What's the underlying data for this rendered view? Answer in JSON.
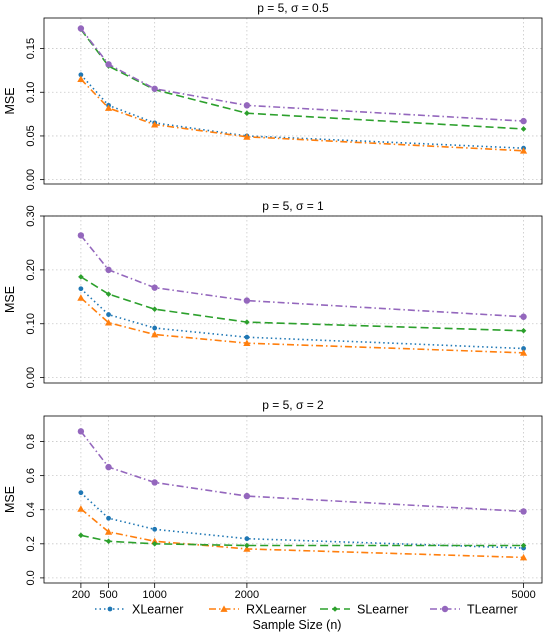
{
  "chart_data": {
    "type": "line",
    "xlabel": "Sample Size (n)",
    "x": [
      200,
      500,
      1000,
      2000,
      5000
    ],
    "xticks": [
      200,
      500,
      1000,
      2000,
      5000
    ],
    "xlim": [
      -200,
      5200
    ],
    "legend": {
      "placement": "bottom",
      "entries": [
        "XLearner",
        "RXLearner",
        "SLearner",
        "TLearner"
      ]
    },
    "series_styles": [
      {
        "name": "XLearner",
        "color": "#1f77b4",
        "dash": "1.5,3",
        "marker": "circle-small"
      },
      {
        "name": "RXLearner",
        "color": "#ff7f0e",
        "dash": "7,3,1.5,3",
        "marker": "triangle"
      },
      {
        "name": "SLearner",
        "color": "#2ca02c",
        "dash": "8,4",
        "marker": "diamond"
      },
      {
        "name": "TLearner",
        "color": "#9467bd",
        "dash": "7,3,1.5,3",
        "marker": "circle"
      }
    ],
    "grid": true,
    "panels": [
      {
        "title": "p = 5, σ = 0.5",
        "ylabel": "MSE",
        "ylim": [
          -0.005,
          0.185
        ],
        "yticks": [
          0.0,
          0.05,
          0.1,
          0.15
        ],
        "ytick_labels": [
          "0.00",
          "0.05",
          "0.10",
          "0.15"
        ],
        "series": [
          {
            "name": "XLearner",
            "values": [
              0.12,
              0.085,
              0.065,
              0.05,
              0.036
            ]
          },
          {
            "name": "RXLearner",
            "values": [
              0.115,
              0.082,
              0.063,
              0.049,
              0.033
            ]
          },
          {
            "name": "SLearner",
            "values": [
              0.172,
              0.13,
              0.103,
              0.076,
              0.058
            ]
          },
          {
            "name": "TLearner",
            "values": [
              0.173,
              0.132,
              0.104,
              0.085,
              0.067
            ]
          }
        ]
      },
      {
        "title": "p = 5, σ = 1",
        "ylabel": "MSE",
        "ylim": [
          -0.01,
          0.3
        ],
        "yticks": [
          0.0,
          0.1,
          0.2,
          0.3
        ],
        "ytick_labels": [
          "0.00",
          "0.10",
          "0.20",
          "0.30"
        ],
        "series": [
          {
            "name": "XLearner",
            "values": [
              0.165,
              0.117,
              0.092,
              0.075,
              0.054
            ]
          },
          {
            "name": "RXLearner",
            "values": [
              0.148,
              0.102,
              0.08,
              0.064,
              0.046
            ]
          },
          {
            "name": "SLearner",
            "values": [
              0.187,
              0.155,
              0.127,
              0.103,
              0.087
            ]
          },
          {
            "name": "TLearner",
            "values": [
              0.264,
              0.2,
              0.167,
              0.143,
              0.113
            ]
          }
        ]
      },
      {
        "title": "p = 5, σ = 2",
        "ylabel": "MSE",
        "ylim": [
          -0.03,
          0.95
        ],
        "yticks": [
          0.0,
          0.2,
          0.4,
          0.6,
          0.8
        ],
        "ytick_labels": [
          "0.0",
          "0.2",
          "0.4",
          "0.6",
          "0.8"
        ],
        "series": [
          {
            "name": "XLearner",
            "values": [
              0.5,
              0.35,
              0.285,
              0.23,
              0.175
            ]
          },
          {
            "name": "RXLearner",
            "values": [
              0.405,
              0.27,
              0.215,
              0.17,
              0.12
            ]
          },
          {
            "name": "SLearner",
            "values": [
              0.25,
              0.215,
              0.2,
              0.19,
              0.19
            ]
          },
          {
            "name": "TLearner",
            "values": [
              0.86,
              0.65,
              0.56,
              0.48,
              0.39
            ]
          }
        ]
      }
    ]
  }
}
